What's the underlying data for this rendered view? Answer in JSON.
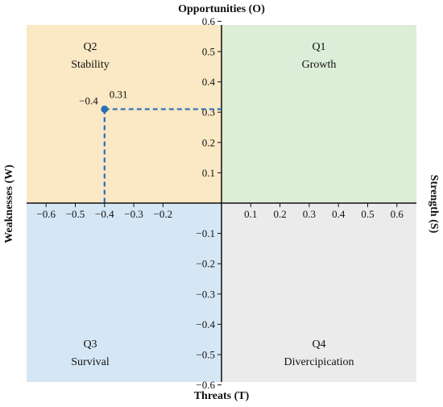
{
  "axis_titles": {
    "top": "Opportunities (O)",
    "bottom": "Threats (T)",
    "left": "Weaknesses (W)",
    "right": "Strength (S)"
  },
  "quadrants": [
    {
      "id": "Q1",
      "name": "Growth",
      "color": "#dcedd8",
      "position": "top-right"
    },
    {
      "id": "Q2",
      "name": "Stability",
      "color": "#fbe8c4",
      "position": "top-left"
    },
    {
      "id": "Q3",
      "name": "Survival",
      "color": "#d5e7f5",
      "position": "bottom-left"
    },
    {
      "id": "Q4",
      "name": "Divercipication",
      "color": "#ebebeb",
      "position": "bottom-right"
    }
  ],
  "chart_data": {
    "type": "scatter",
    "xlim": [
      -0.65,
      0.65
    ],
    "ylim": [
      -0.65,
      0.65
    ],
    "x_ticks": [
      -0.6,
      -0.5,
      -0.4,
      -0.3,
      -0.2,
      0.1,
      0.2,
      0.3,
      0.4,
      0.5,
      0.6
    ],
    "x_tick_labels": [
      "−0.6",
      "−0.5",
      "−0.4",
      "−0.3",
      "−0.2",
      "0.1",
      "0.2",
      "0.3",
      "0.4",
      "0.5",
      "0.6"
    ],
    "y_ticks": [
      0.6,
      0.5,
      0.4,
      0.3,
      0.2,
      0.1,
      -0.1,
      -0.2,
      -0.3,
      -0.4,
      -0.5,
      -0.6
    ],
    "y_tick_labels": [
      "0.6",
      "0.5",
      "0.4",
      "0.3",
      "0.2",
      "0.1",
      "−0.1",
      "−0.2",
      "−0.3",
      "−0.4",
      "−0.5",
      "−0.6"
    ],
    "grid": false,
    "point": {
      "x": -0.4,
      "y": 0.31,
      "x_label": "−0.4",
      "y_label": "0.31",
      "color": "#2a6fb8"
    }
  }
}
